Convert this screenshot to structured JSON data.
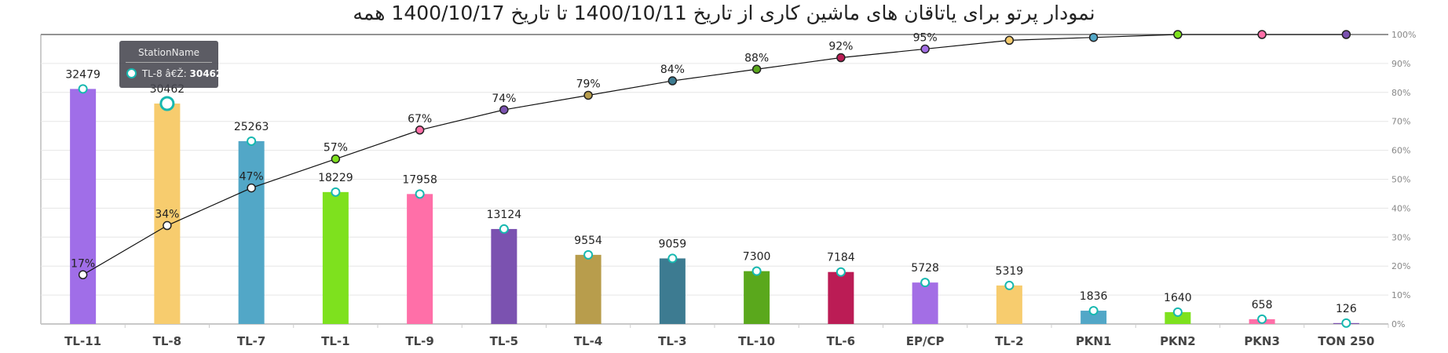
{
  "chart_data": {
    "type": "bar",
    "title": "نمودار پرتو برای یاتاقان های ماشین کاری از تاریخ 1400/10/11 تا تاریخ 1400/10/17 همه",
    "categories": [
      "TL-11",
      "TL-8",
      "TL-7",
      "TL-1",
      "TL-9",
      "TL-5",
      "TL-4",
      "TL-3",
      "TL-10",
      "TL-6",
      "EP/CP",
      "TL-2",
      "PKN1",
      "PKN2",
      "PKN3",
      "TON 250"
    ],
    "series": [
      {
        "type": "bar",
        "values": [
          32479,
          30462,
          25263,
          18229,
          17958,
          13124,
          9554,
          9059,
          7300,
          7184,
          5728,
          5319,
          1836,
          1640,
          658,
          126
        ],
        "colors": [
          "#a06ee8",
          "#f7cc6e",
          "#52a7c7",
          "#7ee11e",
          "#ff6fa8",
          "#7b52b0",
          "#b89d4c",
          "#3d7b91",
          "#5aa81c",
          "#bb1c55",
          "#a36ee5",
          "#f7cc6e",
          "#52a7c7",
          "#7ee11e",
          "#ff6fa8",
          "#7b52b0"
        ]
      },
      {
        "type": "line",
        "values": [
          17,
          34,
          47,
          57,
          67,
          74,
          79,
          84,
          88,
          92,
          95,
          98,
          99,
          100,
          100,
          100
        ],
        "labels": [
          "17%",
          "34%",
          "47%",
          "57%",
          "67%",
          "74%",
          "79%",
          "84%",
          "88%",
          "92%",
          "95%",
          "",
          "",
          "",
          "",
          ""
        ],
        "point_colors": [
          "#ffffff",
          "#ffffff",
          "#ffffff",
          "#7ee11e",
          "#ff6fa8",
          "#7b52b0",
          "#b89d4c",
          "#3d7b91",
          "#5aa81c",
          "#bb1c55",
          "#a36ee5",
          "#f7cc6e",
          "#52a7c7",
          "#7ee11e",
          "#ff6fa8",
          "#7b52b0"
        ]
      }
    ],
    "y_right_ticks": [
      "0%",
      "10%",
      "20%",
      "30%",
      "40%",
      "50%",
      "60%",
      "70%",
      "80%",
      "90%",
      "100%"
    ],
    "ylim": [
      0,
      40000
    ],
    "grid": true,
    "highlighted_category": "TL-8"
  },
  "tooltip": {
    "header": "StationName",
    "series_label": "TL-8 â€Ž:",
    "value": "30462"
  }
}
